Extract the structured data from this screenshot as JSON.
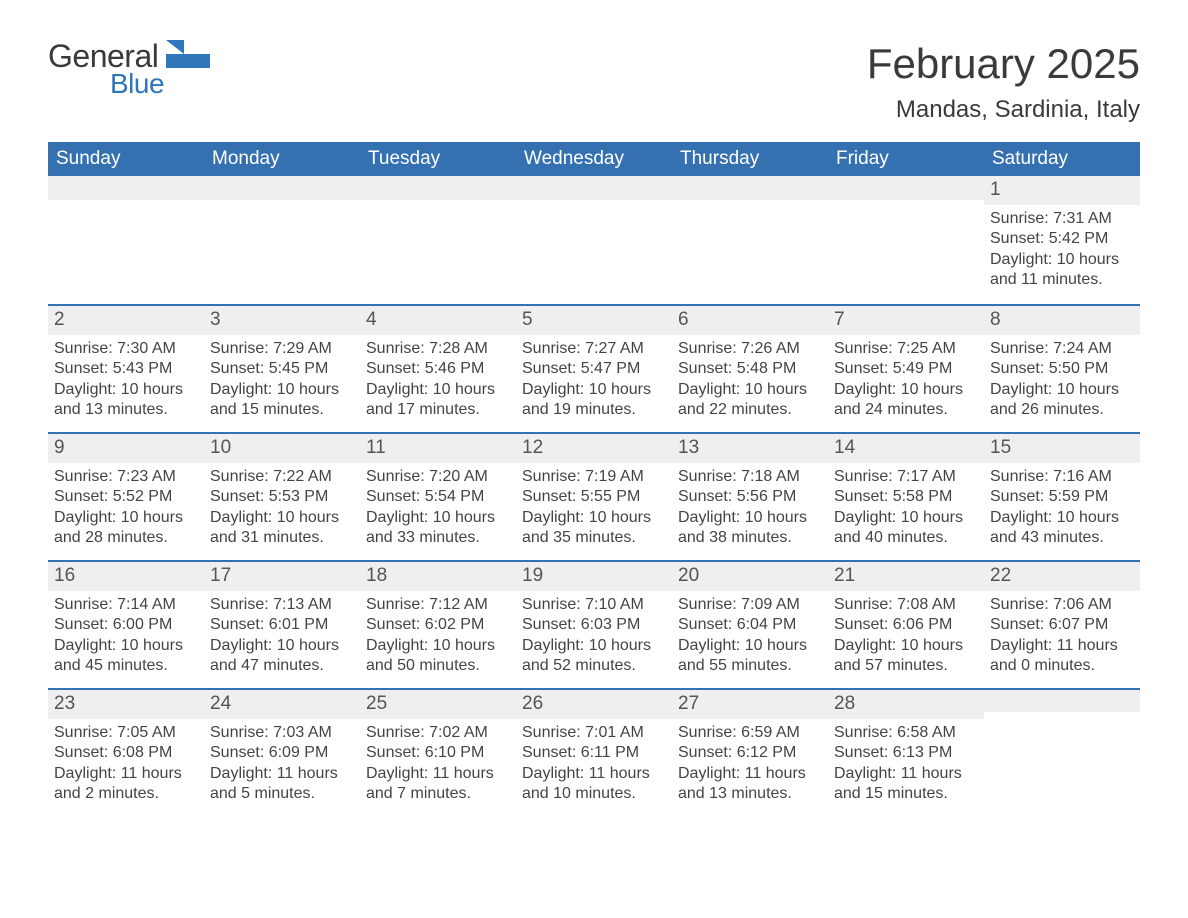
{
  "brand": {
    "general": "General",
    "blue": "Blue"
  },
  "header": {
    "title": "February 2025",
    "location": "Mandas, Sardinia, Italy"
  },
  "style": {
    "header_bg": "#3571b1",
    "header_fg": "#ffffff",
    "row_accent": "#3571b1",
    "daynum_bg": "#efefef",
    "text_color": "#444444",
    "page_bg": "#ffffff",
    "title_fontsize": 42,
    "location_fontsize": 24,
    "dayhdr_fontsize": 19,
    "daynum_fontsize": 19,
    "body_fontsize": 16
  },
  "weekdays": [
    "Sunday",
    "Monday",
    "Tuesday",
    "Wednesday",
    "Thursday",
    "Friday",
    "Saturday"
  ],
  "weeks": [
    [
      null,
      null,
      null,
      null,
      null,
      null,
      {
        "n": "1",
        "sunrise": "Sunrise: 7:31 AM",
        "sunset": "Sunset: 5:42 PM",
        "daylight": "Daylight: 10 hours and 11 minutes."
      }
    ],
    [
      {
        "n": "2",
        "sunrise": "Sunrise: 7:30 AM",
        "sunset": "Sunset: 5:43 PM",
        "daylight": "Daylight: 10 hours and 13 minutes."
      },
      {
        "n": "3",
        "sunrise": "Sunrise: 7:29 AM",
        "sunset": "Sunset: 5:45 PM",
        "daylight": "Daylight: 10 hours and 15 minutes."
      },
      {
        "n": "4",
        "sunrise": "Sunrise: 7:28 AM",
        "sunset": "Sunset: 5:46 PM",
        "daylight": "Daylight: 10 hours and 17 minutes."
      },
      {
        "n": "5",
        "sunrise": "Sunrise: 7:27 AM",
        "sunset": "Sunset: 5:47 PM",
        "daylight": "Daylight: 10 hours and 19 minutes."
      },
      {
        "n": "6",
        "sunrise": "Sunrise: 7:26 AM",
        "sunset": "Sunset: 5:48 PM",
        "daylight": "Daylight: 10 hours and 22 minutes."
      },
      {
        "n": "7",
        "sunrise": "Sunrise: 7:25 AM",
        "sunset": "Sunset: 5:49 PM",
        "daylight": "Daylight: 10 hours and 24 minutes."
      },
      {
        "n": "8",
        "sunrise": "Sunrise: 7:24 AM",
        "sunset": "Sunset: 5:50 PM",
        "daylight": "Daylight: 10 hours and 26 minutes."
      }
    ],
    [
      {
        "n": "9",
        "sunrise": "Sunrise: 7:23 AM",
        "sunset": "Sunset: 5:52 PM",
        "daylight": "Daylight: 10 hours and 28 minutes."
      },
      {
        "n": "10",
        "sunrise": "Sunrise: 7:22 AM",
        "sunset": "Sunset: 5:53 PM",
        "daylight": "Daylight: 10 hours and 31 minutes."
      },
      {
        "n": "11",
        "sunrise": "Sunrise: 7:20 AM",
        "sunset": "Sunset: 5:54 PM",
        "daylight": "Daylight: 10 hours and 33 minutes."
      },
      {
        "n": "12",
        "sunrise": "Sunrise: 7:19 AM",
        "sunset": "Sunset: 5:55 PM",
        "daylight": "Daylight: 10 hours and 35 minutes."
      },
      {
        "n": "13",
        "sunrise": "Sunrise: 7:18 AM",
        "sunset": "Sunset: 5:56 PM",
        "daylight": "Daylight: 10 hours and 38 minutes."
      },
      {
        "n": "14",
        "sunrise": "Sunrise: 7:17 AM",
        "sunset": "Sunset: 5:58 PM",
        "daylight": "Daylight: 10 hours and 40 minutes."
      },
      {
        "n": "15",
        "sunrise": "Sunrise: 7:16 AM",
        "sunset": "Sunset: 5:59 PM",
        "daylight": "Daylight: 10 hours and 43 minutes."
      }
    ],
    [
      {
        "n": "16",
        "sunrise": "Sunrise: 7:14 AM",
        "sunset": "Sunset: 6:00 PM",
        "daylight": "Daylight: 10 hours and 45 minutes."
      },
      {
        "n": "17",
        "sunrise": "Sunrise: 7:13 AM",
        "sunset": "Sunset: 6:01 PM",
        "daylight": "Daylight: 10 hours and 47 minutes."
      },
      {
        "n": "18",
        "sunrise": "Sunrise: 7:12 AM",
        "sunset": "Sunset: 6:02 PM",
        "daylight": "Daylight: 10 hours and 50 minutes."
      },
      {
        "n": "19",
        "sunrise": "Sunrise: 7:10 AM",
        "sunset": "Sunset: 6:03 PM",
        "daylight": "Daylight: 10 hours and 52 minutes."
      },
      {
        "n": "20",
        "sunrise": "Sunrise: 7:09 AM",
        "sunset": "Sunset: 6:04 PM",
        "daylight": "Daylight: 10 hours and 55 minutes."
      },
      {
        "n": "21",
        "sunrise": "Sunrise: 7:08 AM",
        "sunset": "Sunset: 6:06 PM",
        "daylight": "Daylight: 10 hours and 57 minutes."
      },
      {
        "n": "22",
        "sunrise": "Sunrise: 7:06 AM",
        "sunset": "Sunset: 6:07 PM",
        "daylight": "Daylight: 11 hours and 0 minutes."
      }
    ],
    [
      {
        "n": "23",
        "sunrise": "Sunrise: 7:05 AM",
        "sunset": "Sunset: 6:08 PM",
        "daylight": "Daylight: 11 hours and 2 minutes."
      },
      {
        "n": "24",
        "sunrise": "Sunrise: 7:03 AM",
        "sunset": "Sunset: 6:09 PM",
        "daylight": "Daylight: 11 hours and 5 minutes."
      },
      {
        "n": "25",
        "sunrise": "Sunrise: 7:02 AM",
        "sunset": "Sunset: 6:10 PM",
        "daylight": "Daylight: 11 hours and 7 minutes."
      },
      {
        "n": "26",
        "sunrise": "Sunrise: 7:01 AM",
        "sunset": "Sunset: 6:11 PM",
        "daylight": "Daylight: 11 hours and 10 minutes."
      },
      {
        "n": "27",
        "sunrise": "Sunrise: 6:59 AM",
        "sunset": "Sunset: 6:12 PM",
        "daylight": "Daylight: 11 hours and 13 minutes."
      },
      {
        "n": "28",
        "sunrise": "Sunrise: 6:58 AM",
        "sunset": "Sunset: 6:13 PM",
        "daylight": "Daylight: 11 hours and 15 minutes."
      },
      null
    ]
  ]
}
